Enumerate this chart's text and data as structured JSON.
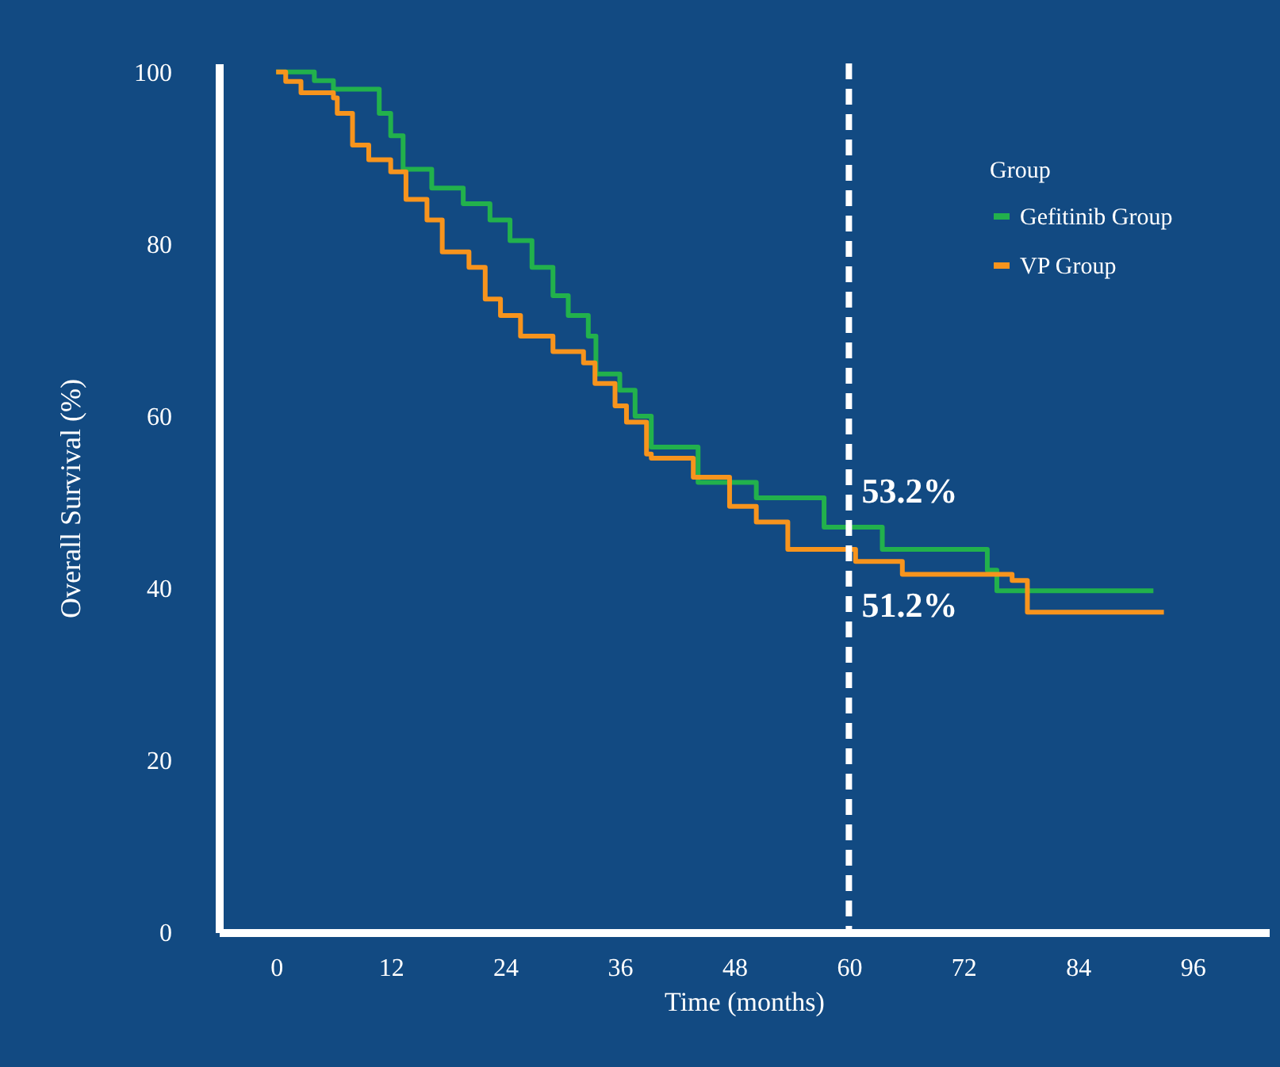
{
  "chart_data": {
    "type": "step",
    "xlabel": "Time (months)",
    "ylabel": "Overall Survival (%)",
    "legend_title": "Group",
    "legend": "top right",
    "grid": false,
    "line_style": "solid",
    "xlim": [
      -6,
      104
    ],
    "xticks": [
      0,
      12,
      24,
      36,
      48,
      60,
      72,
      84,
      96
    ],
    "ylim": [
      0,
      101
    ],
    "yticks": [
      0,
      20,
      40,
      60,
      80,
      100
    ],
    "series": [
      {
        "name": "Gefitinib Group",
        "color": "#22b14c",
        "x": [
          0,
          4,
          6,
          10.8,
          12,
          13.3,
          16.3,
          19.6,
          22.4,
          24.5,
          26.8,
          29,
          30.6,
          32.7,
          33.5,
          36,
          37.6,
          39.3,
          44.2,
          50.3,
          57.4,
          63.5,
          74.5,
          75.5,
          91.9
        ],
        "values": [
          100,
          99,
          98,
          95.2,
          92.6,
          88.7,
          86.5,
          84.7,
          82.8,
          80.4,
          77.3,
          74,
          71.7,
          69.3,
          64.9,
          63,
          60,
          56.4,
          52.3,
          50.5,
          47.1,
          44.5,
          42.1,
          39.7,
          39.7
        ]
      },
      {
        "name": "VP Group",
        "color": "#f7941d",
        "x": [
          0,
          1,
          2.6,
          6,
          6.4,
          8,
          9.7,
          12,
          13.6,
          15.8,
          17.4,
          20.2,
          21.9,
          23.5,
          25.6,
          29,
          32.2,
          33.4,
          35.5,
          36.7,
          38.8,
          39.3,
          43.7,
          47.5,
          50.3,
          53.6,
          60.7,
          65.6,
          77.1,
          78.7,
          93
        ],
        "values": [
          100,
          98.9,
          97.6,
          97,
          95.2,
          91.5,
          89.8,
          88.4,
          85.2,
          82.8,
          79.1,
          77.3,
          73.6,
          71.7,
          69.3,
          67.5,
          66.2,
          63.8,
          61.2,
          59.3,
          55.6,
          55.1,
          52.9,
          49.5,
          47.7,
          44.5,
          43.1,
          41.6,
          40.9,
          37.2,
          37.2
        ]
      }
    ],
    "ref_lines": [
      {
        "axis": "x",
        "value": 60,
        "color": "#ffffff",
        "line_style": "dashed"
      }
    ],
    "annotations": [
      "53.2%",
      "51.2%"
    ]
  }
}
